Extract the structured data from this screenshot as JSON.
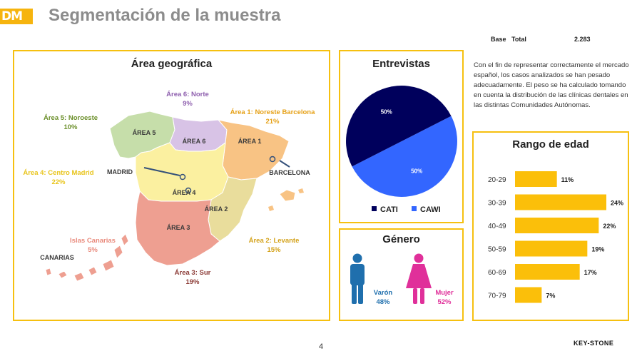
{
  "header": {
    "logo_text": "DM",
    "title": "Segmentación de la muestra",
    "base_label": "Base",
    "total_label": "Total",
    "total_value": "2.283"
  },
  "intro_text": "Con el fin de representar correctamente el mercado español, los casos analizados se han pesado adecuadamente. El peso se ha calculado tomando en cuenta la distribución de las clínicas dentales en las distintas Comunidades Autónomas.",
  "map_panel": {
    "title": "Área geográfica",
    "regions": [
      {
        "id": "noroeste",
        "name": "Área 5: Noroeste",
        "pct": "10%",
        "color": "#6b8f2a"
      },
      {
        "id": "norte",
        "name": "Área 6: Norte",
        "pct": "9%",
        "color": "#8e5fae"
      },
      {
        "id": "noreste",
        "name": "Área 1: Noreste Barcelona",
        "pct": "21%",
        "color": "#e6a117"
      },
      {
        "id": "centro",
        "name": "Área 4: Centro Madrid",
        "pct": "22%",
        "color": "#e8c41a"
      },
      {
        "id": "levante",
        "name": "Área 2: Levante",
        "pct": "15%",
        "color": "#d4a21a"
      },
      {
        "id": "sur",
        "name": "Área 3: Sur",
        "pct": "19%",
        "color": "#8b3a35"
      },
      {
        "id": "canarias",
        "name": "Islas Canarias",
        "pct": "5%",
        "color": "#e98a7c"
      }
    ],
    "map_tags": {
      "area5": "ÁREA 5",
      "area6": "ÁREA 6",
      "area1": "ÁREA 1",
      "area4": "ÁREA 4",
      "area2": "ÁREA 2",
      "area3": "ÁREA 3",
      "madrid": "MADRID",
      "barcelona": "BARCELONA",
      "canarias": "CANARIAS"
    }
  },
  "interviews_panel": {
    "title": "Entrevistas"
  },
  "gender_panel": {
    "title": "Género"
  },
  "age_panel": {
    "title": "Rango de edad"
  },
  "page_number": "4",
  "brand": "KEY-STONE",
  "chart_data": [
    {
      "type": "pie",
      "title": "Entrevistas",
      "labels": [
        "CATI",
        "CAWI"
      ],
      "values": [
        50,
        50
      ],
      "value_labels": [
        "50%",
        "50%"
      ],
      "colors": [
        "#00005c",
        "#3366ff"
      ],
      "legend": "bottom"
    },
    {
      "type": "bar",
      "orientation": "horizontal",
      "title": "Rango de edad",
      "categories": [
        "20-29",
        "30-39",
        "40-49",
        "50-59",
        "60-69",
        "70-79"
      ],
      "values": [
        11,
        24,
        22,
        19,
        17,
        7
      ],
      "value_labels": [
        "11%",
        "24%",
        "22%",
        "19%",
        "17%",
        "7%"
      ],
      "color": "#fbbf0a",
      "xlim": [
        0,
        24
      ]
    },
    {
      "type": "table",
      "title": "Género",
      "categories": [
        "Varón",
        "Mujer"
      ],
      "values": [
        48,
        52
      ],
      "value_labels": [
        "48%",
        "52%"
      ],
      "colors": [
        "#1f6fad",
        "#e0309a"
      ]
    }
  ]
}
